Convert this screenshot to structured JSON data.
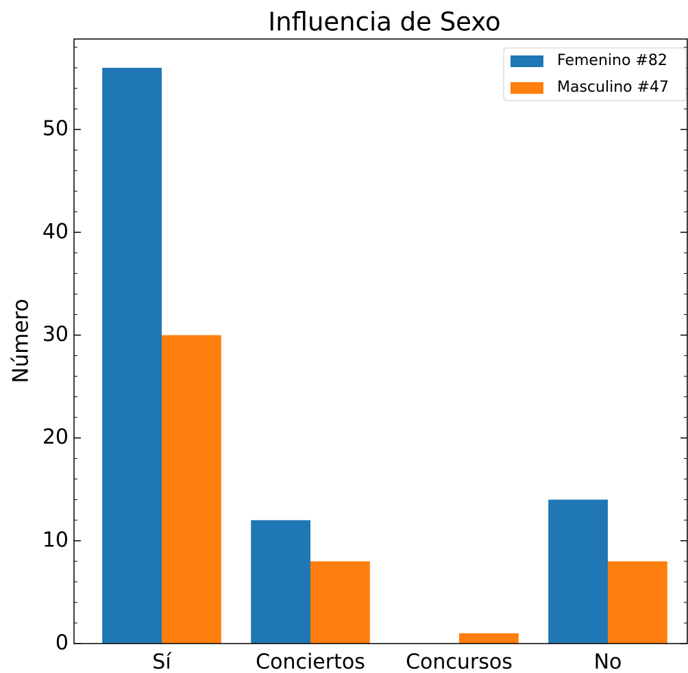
{
  "chart_data": {
    "type": "bar",
    "title": "Influencia de Sexo",
    "ylabel": "Número",
    "categories": [
      "Sí",
      "Conciertos",
      "Concursos",
      "No"
    ],
    "series": [
      {
        "name": "Femenino #82",
        "color": "#1f77b4",
        "values": [
          56,
          12,
          0,
          14
        ]
      },
      {
        "name": "Masculino #47",
        "color": "#ff7f0e",
        "values": [
          30,
          8,
          1,
          8
        ]
      }
    ],
    "ylim": [
      0,
      58.8
    ],
    "yticks": [
      0,
      10,
      20,
      30,
      40,
      50
    ],
    "minor_yticks": [
      2,
      4,
      6,
      8,
      12,
      14,
      16,
      18,
      22,
      24,
      26,
      28,
      32,
      34,
      36,
      38,
      42,
      44,
      46,
      48,
      52,
      54,
      56,
      58
    ],
    "legend": "upper right"
  }
}
